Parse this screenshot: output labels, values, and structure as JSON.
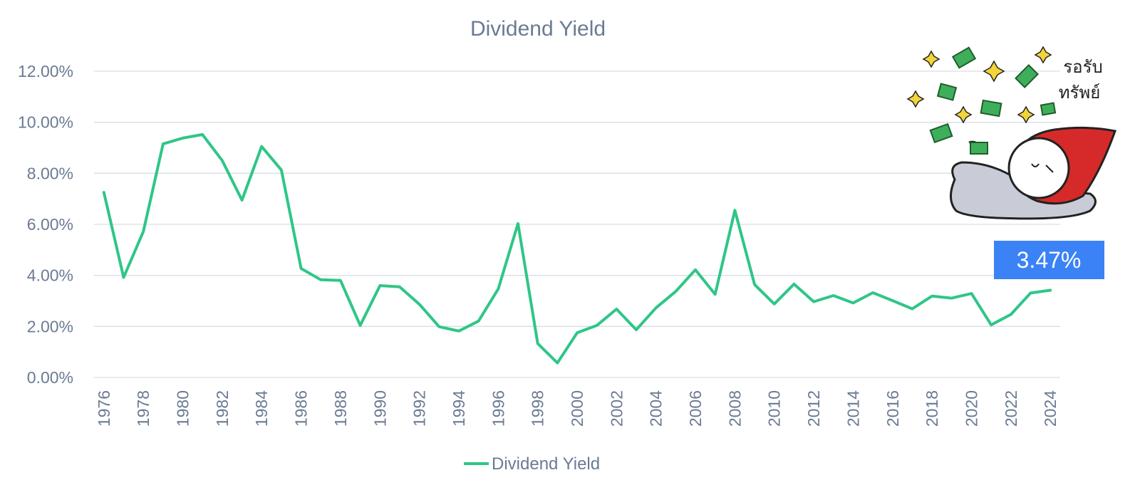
{
  "chart_data": {
    "type": "line",
    "title": "Dividend Yield",
    "xlabel": "",
    "ylabel": "",
    "ylim": [
      0,
      12
    ],
    "yticks": [
      0,
      2,
      4,
      6,
      8,
      10,
      12
    ],
    "ytick_labels": [
      "0.00%",
      "2.00%",
      "4.00%",
      "6.00%",
      "8.00%",
      "10.00%",
      "12.00%"
    ],
    "x_tick_labels": [
      "1976",
      "1978",
      "1980",
      "1982",
      "1984",
      "1986",
      "1988",
      "1990",
      "1992",
      "1994",
      "1996",
      "1998",
      "2000",
      "2002",
      "2004",
      "2006",
      "2008",
      "2010",
      "2012",
      "2014",
      "2016",
      "2018",
      "2020",
      "2022",
      "2024"
    ],
    "series": [
      {
        "name": "Dividend Yield",
        "color": "#2fc687",
        "x": [
          1976,
          1977,
          1978,
          1979,
          1980,
          1981,
          1982,
          1983,
          1984,
          1985,
          1986,
          1987,
          1988,
          1989,
          1990,
          1991,
          1992,
          1993,
          1994,
          1995,
          1996,
          1997,
          1998,
          1999,
          2000,
          2001,
          2002,
          2003,
          2004,
          2005,
          2006,
          2007,
          2008,
          2009,
          2010,
          2011,
          2012,
          2013,
          2014,
          2015,
          2016,
          2017,
          2018,
          2019,
          2020,
          2021,
          2022,
          2023,
          2024
        ],
        "values": [
          7.25,
          3.92,
          5.72,
          9.15,
          9.38,
          9.52,
          8.5,
          6.95,
          9.05,
          8.13,
          4.27,
          3.83,
          3.8,
          2.04,
          3.6,
          3.55,
          2.87,
          1.99,
          1.82,
          2.21,
          3.47,
          6.03,
          1.33,
          0.57,
          1.75,
          2.04,
          2.68,
          1.87,
          2.73,
          3.37,
          4.22,
          3.26,
          6.55,
          3.64,
          2.88,
          3.66,
          2.97,
          3.21,
          2.92,
          3.32,
          3.01,
          2.69,
          3.19,
          3.11,
          3.29,
          2.06,
          2.47,
          3.31,
          3.42
        ]
      }
    ],
    "legend": {
      "position": "bottom-center",
      "label": "Dividend Yield"
    },
    "grid": true,
    "annotation": {
      "label": "3.47%",
      "color": "#3b82f6"
    }
  },
  "sticker": {
    "text_line1": "รอรับ",
    "text_line2": "ทรัพย์"
  }
}
